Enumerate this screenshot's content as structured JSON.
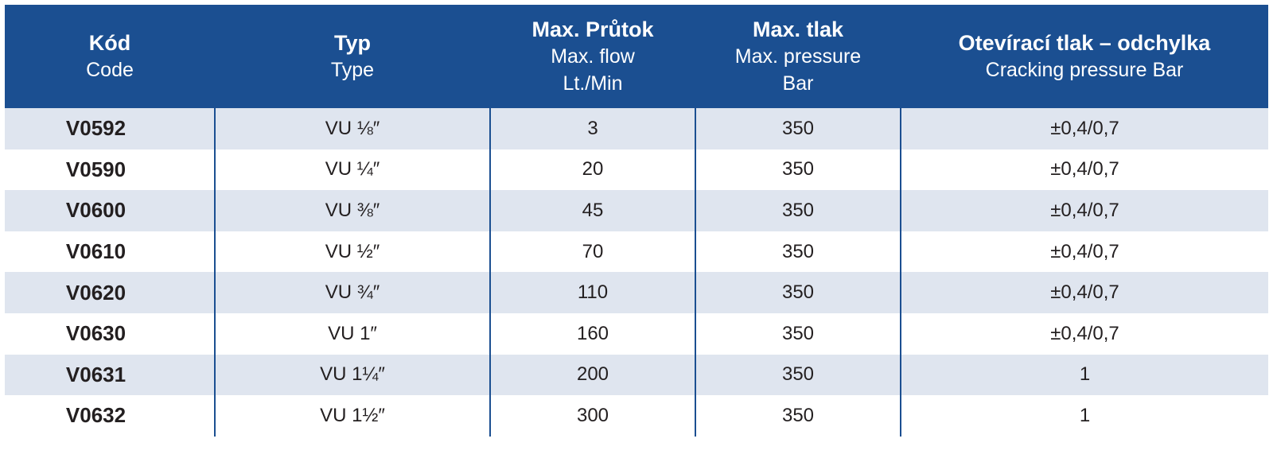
{
  "table": {
    "headers": [
      {
        "main": "Kód",
        "sub": [
          "Code"
        ]
      },
      {
        "main": "Typ",
        "sub": [
          "Type"
        ]
      },
      {
        "main": "Max. Průtok",
        "sub": [
          "Max. flow",
          "Lt./Min"
        ]
      },
      {
        "main": "Max. tlak",
        "sub": [
          "Max. pressure",
          "Bar"
        ]
      },
      {
        "main": "Otevírací tlak – odchylka",
        "sub": [
          "Cracking pressure Bar"
        ]
      }
    ],
    "rows": [
      {
        "code": "V0592",
        "type": "VU ⅛″",
        "flow": "3",
        "pressure": "350",
        "cracking": "±0,4/0,7"
      },
      {
        "code": "V0590",
        "type": "VU ¼″",
        "flow": "20",
        "pressure": "350",
        "cracking": "±0,4/0,7"
      },
      {
        "code": "V0600",
        "type": "VU ⅜″",
        "flow": "45",
        "pressure": "350",
        "cracking": "±0,4/0,7"
      },
      {
        "code": "V0610",
        "type": "VU ½″",
        "flow": "70",
        "pressure": "350",
        "cracking": "±0,4/0,7"
      },
      {
        "code": "V0620",
        "type": "VU ¾″",
        "flow": "110",
        "pressure": "350",
        "cracking": "±0,4/0,7"
      },
      {
        "code": "V0630",
        "type": "VU 1″",
        "flow": "160",
        "pressure": "350",
        "cracking": "±0,4/0,7"
      },
      {
        "code": "V0631",
        "type": "VU 1¼″",
        "flow": "200",
        "pressure": "350",
        "cracking": "1"
      },
      {
        "code": "V0632",
        "type": "VU 1½″",
        "flow": "300",
        "pressure": "350",
        "cracking": "1"
      }
    ]
  },
  "colors": {
    "header_bg": "#1b4f91",
    "header_text": "#ffffff",
    "row_stripe": "#dfe5ef",
    "row_plain": "#ffffff",
    "divider": "#1b4f91",
    "body_text": "#231f20"
  }
}
